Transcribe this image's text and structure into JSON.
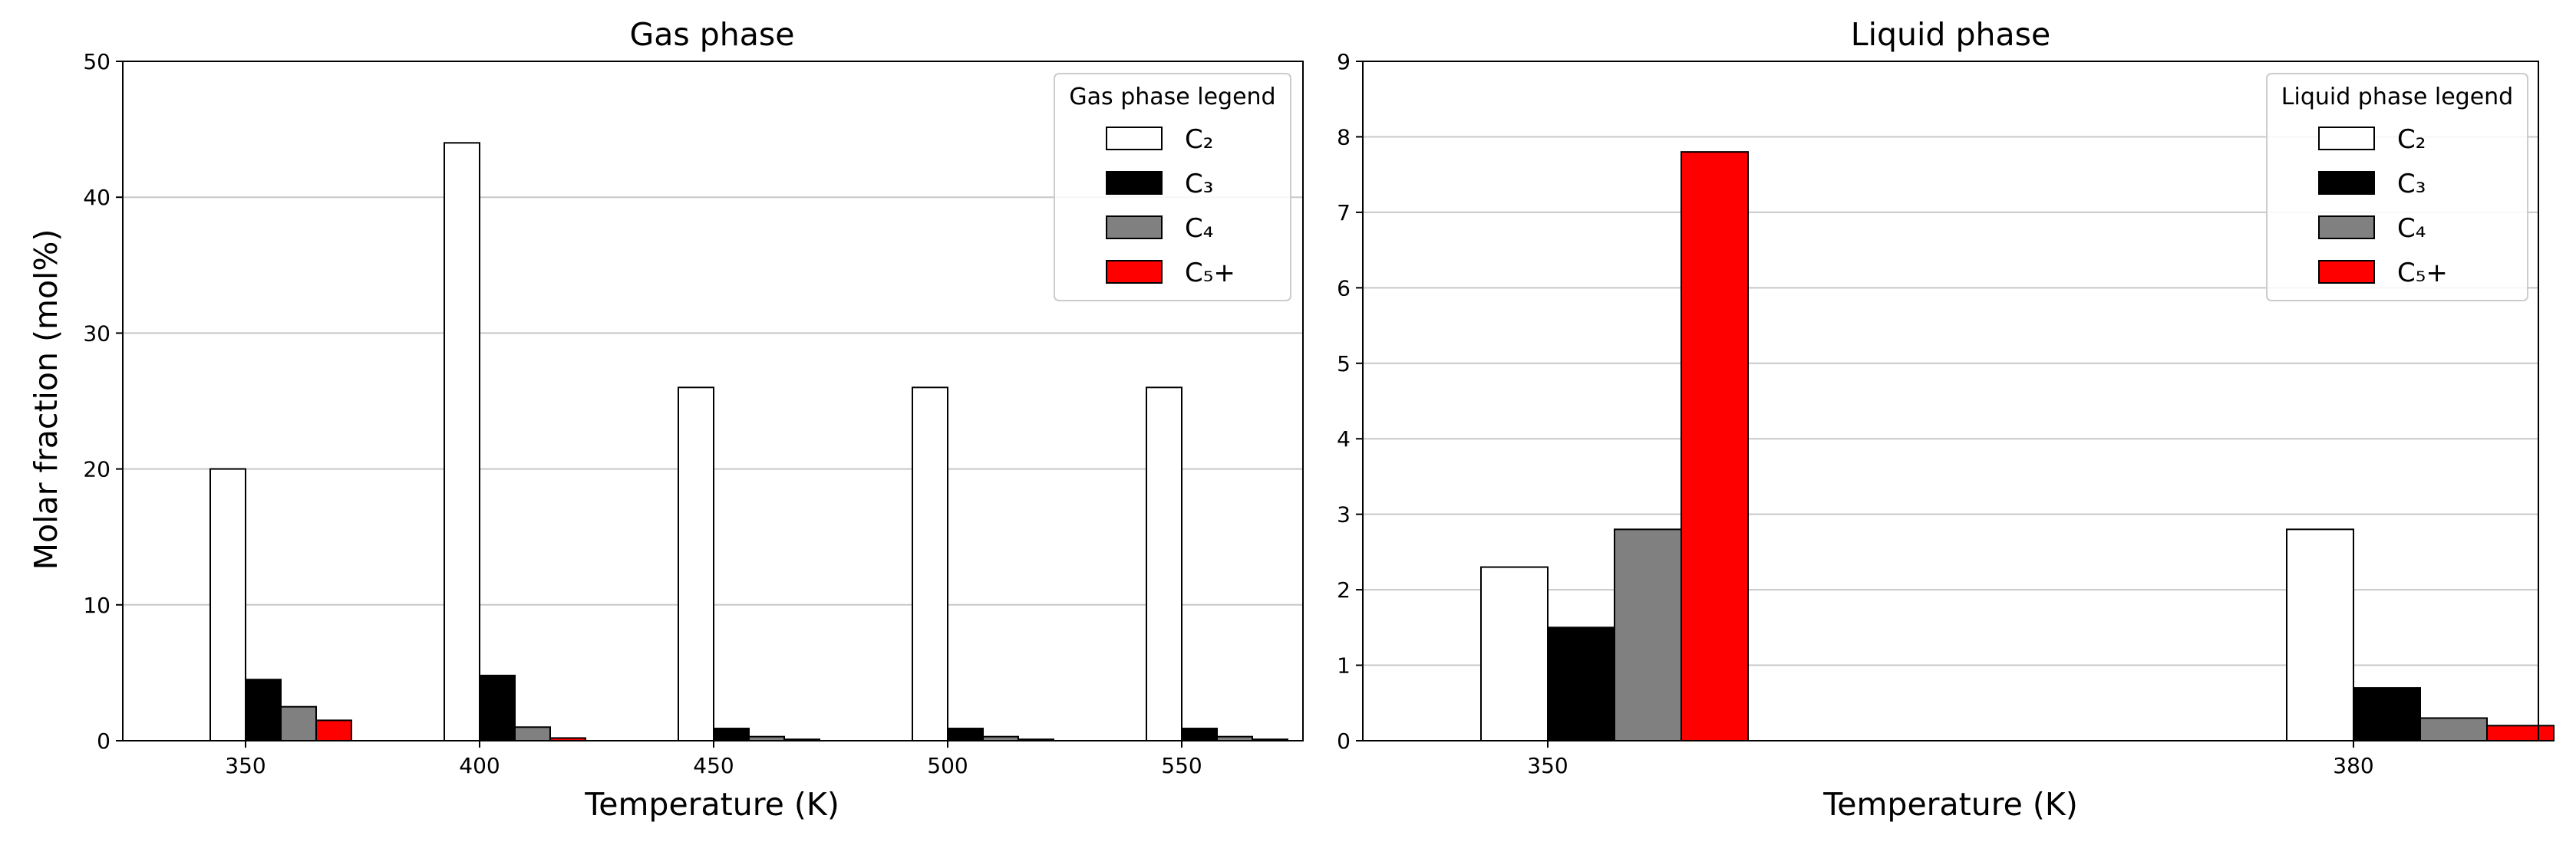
{
  "colors": {
    "C2": "#ffffff",
    "C3": "#000000",
    "C4": "#808080",
    "C5plus": "#ff0000",
    "edge": "#000000",
    "grid": "#c8c8c8"
  },
  "chart_data": [
    {
      "type": "bar",
      "title": "Gas phase",
      "xlabel": "Temperature (K)",
      "ylabel": "Molar fraction (mol%)",
      "categories": [
        "350",
        "400",
        "450",
        "500",
        "550"
      ],
      "ylim": [
        0,
        50
      ],
      "yticks": [
        0,
        10,
        20,
        30,
        40,
        50
      ],
      "grid": "y",
      "legend": {
        "title": "Gas phase legend",
        "placement": "top-right"
      },
      "series": [
        {
          "name": "C₂",
          "color": "#ffffff",
          "values": [
            20,
            44,
            26,
            26,
            26
          ]
        },
        {
          "name": "C₃",
          "color": "#000000",
          "values": [
            4.5,
            4.8,
            0.9,
            0.9,
            0.9
          ]
        },
        {
          "name": "C₄",
          "color": "#808080",
          "values": [
            2.5,
            1.0,
            0.3,
            0.3,
            0.3
          ]
        },
        {
          "name": "C₅+",
          "color": "#ff0000",
          "values": [
            1.5,
            0.2,
            0.1,
            0.1,
            0.1
          ]
        }
      ]
    },
    {
      "type": "bar",
      "title": "Liquid phase",
      "xlabel": "Temperature (K)",
      "ylabel": "",
      "categories": [
        "350",
        "380"
      ],
      "ylim": [
        0,
        9
      ],
      "yticks": [
        0,
        1,
        2,
        3,
        4,
        5,
        6,
        7,
        8,
        9
      ],
      "grid": "y",
      "legend": {
        "title": "Liquid phase legend",
        "placement": "top-right"
      },
      "series": [
        {
          "name": "C₂",
          "color": "#ffffff",
          "values": [
            2.3,
            2.8
          ]
        },
        {
          "name": "C₃",
          "color": "#000000",
          "values": [
            1.5,
            0.7
          ]
        },
        {
          "name": "C₄",
          "color": "#808080",
          "values": [
            2.8,
            0.3
          ]
        },
        {
          "name": "C₅+",
          "color": "#ff0000",
          "values": [
            7.8,
            0.2
          ]
        }
      ]
    }
  ]
}
